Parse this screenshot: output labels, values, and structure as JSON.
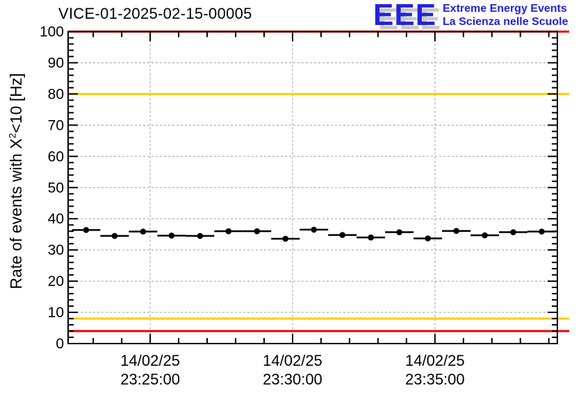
{
  "header": {
    "title": "VICE-01-2025-02-15-00005",
    "logo": {
      "acronym": "EEE",
      "line1": "Extreme Energy Events",
      "line2": "La Scienza nelle Scuole",
      "text_color": "#2222dd",
      "shadow_color": "#c9c9c9"
    }
  },
  "chart_data": {
    "type": "scatter",
    "title": "VICE-01-2025-02-15-00005",
    "ylabel": {
      "prefix": "Rate of events with X",
      "sup": "2",
      "suffix": "<10 [Hz]"
    },
    "ylim": [
      0,
      100
    ],
    "y_major_step": 10,
    "y_minor_step": 2,
    "y_tick_labels": [
      "0",
      "10",
      "20",
      "30",
      "40",
      "50",
      "60",
      "70",
      "80",
      "90",
      "100"
    ],
    "grid": true,
    "x_start": "23:22:07",
    "x_end": "23:39:18",
    "x_minor_step_seconds": 60,
    "x_ticks": [
      {
        "date": "14/02/25",
        "time": "23:25:00"
      },
      {
        "date": "14/02/25",
        "time": "23:30:00"
      },
      {
        "date": "14/02/25",
        "time": "23:35:00"
      }
    ],
    "thresholds": [
      {
        "value": 100,
        "color": "#ee0000",
        "level": "alarm-high"
      },
      {
        "value": 80,
        "color": "#ffcc00",
        "level": "warning-high"
      },
      {
        "value": 8,
        "color": "#ffcc00",
        "level": "warning-low"
      },
      {
        "value": 4,
        "color": "#ee0000",
        "level": "alarm-low"
      }
    ],
    "series": [
      {
        "name": "event-rate",
        "marker": "filled-circle",
        "color": "#000000",
        "x_error_seconds": 30,
        "points": [
          {
            "time": "23:22:45",
            "value": 36.4
          },
          {
            "time": "23:23:45",
            "value": 34.5
          },
          {
            "time": "23:24:45",
            "value": 35.9
          },
          {
            "time": "23:25:45",
            "value": 34.6
          },
          {
            "time": "23:26:45",
            "value": 34.5
          },
          {
            "time": "23:27:45",
            "value": 36.0
          },
          {
            "time": "23:28:45",
            "value": 36.0
          },
          {
            "time": "23:29:45",
            "value": 33.6
          },
          {
            "time": "23:30:45",
            "value": 36.5
          },
          {
            "time": "23:31:45",
            "value": 34.8
          },
          {
            "time": "23:32:45",
            "value": 34.0
          },
          {
            "time": "23:33:45",
            "value": 35.7
          },
          {
            "time": "23:34:45",
            "value": 33.7
          },
          {
            "time": "23:35:45",
            "value": 36.1
          },
          {
            "time": "23:36:45",
            "value": 34.7
          },
          {
            "time": "23:37:45",
            "value": 35.7
          },
          {
            "time": "23:38:45",
            "value": 35.9
          }
        ]
      }
    ]
  }
}
